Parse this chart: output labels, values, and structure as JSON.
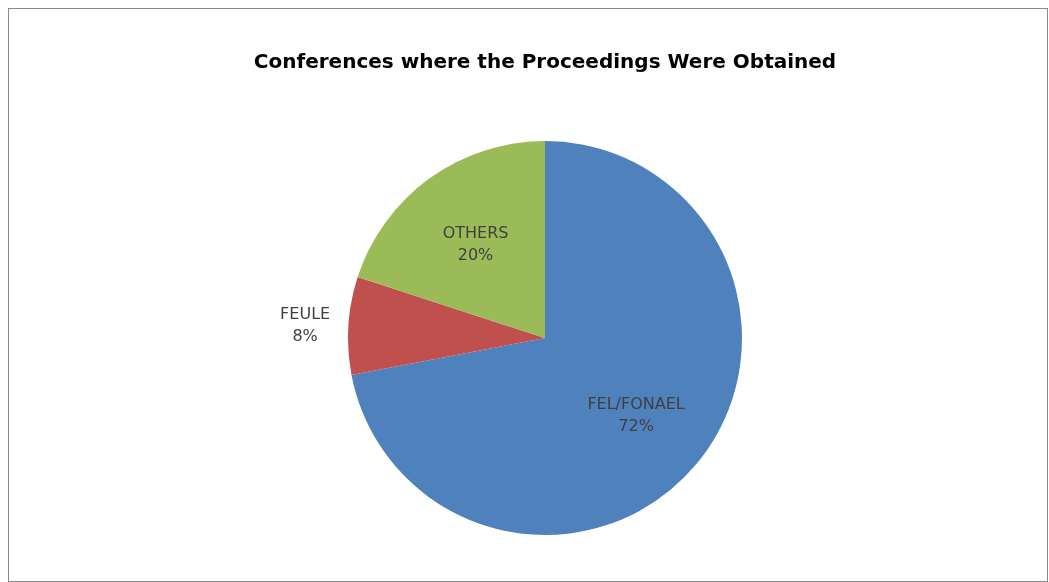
{
  "chart_data": {
    "type": "pie",
    "title": "Conferences where the Proceedings Were Obtained",
    "categories": [
      "FEL/FONAEL",
      "FEULE",
      "OTHERS"
    ],
    "values": [
      72,
      8,
      20
    ],
    "colors": [
      "#4f81bd",
      "#c0504d",
      "#9bbb59"
    ],
    "value_labels": [
      "72%",
      "8%",
      "20%"
    ]
  }
}
